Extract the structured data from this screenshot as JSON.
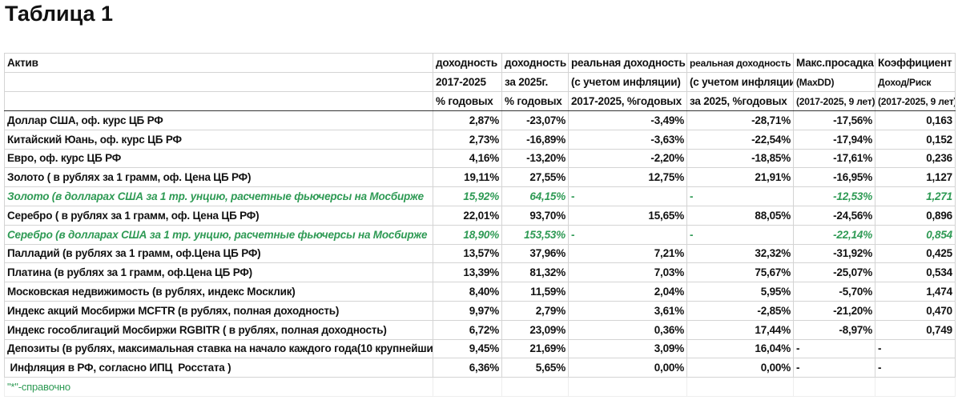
{
  "title": "Таблица 1",
  "table": {
    "header": [
      [
        "Актив",
        "доходность",
        "доходность",
        "реальная доходность",
        "реальная доходность",
        "Макс.просадка",
        "Коэффициент"
      ],
      [
        "",
        "2017-2025",
        "за 2025г.",
        "(с учетом инфляции)",
        "(с учетом инфляции",
        "(MaxDD)",
        "Доход/Риск"
      ],
      [
        "",
        "% годовых",
        "% годовых",
        "2017-2025, %годовых",
        "за 2025, %годовых",
        "(2017-2025, 9 лет)",
        "(2017-2025, 9 лет)"
      ]
    ],
    "rows": [
      [
        "Доллар США, оф. курс ЦБ РФ",
        "2,87%",
        "-23,07%",
        "-3,49%",
        "-28,71%",
        "-17,56%",
        "0,163"
      ],
      [
        "Китайский Юань, оф. курс ЦБ РФ",
        "2,73%",
        "-16,89%",
        "-3,63%",
        "-22,54%",
        "-17,94%",
        "0,152"
      ],
      [
        "Евро, оф. курс ЦБ РФ",
        "4,16%",
        "-13,20%",
        "-2,20%",
        "-18,85%",
        "-17,61%",
        "0,236"
      ],
      [
        "Золото ( в рублях за 1 грамм, оф. Цена ЦБ РФ)",
        "19,11%",
        "27,55%",
        "12,75%",
        "21,91%",
        "-16,95%",
        "1,127"
      ],
      [
        "Золото (в долларах США за 1 тр. унцию, расчетные фьючерсы на Мосбирже",
        "15,92%",
        "64,15%",
        "-",
        "-",
        "-12,53%",
        "1,271"
      ],
      [
        "Серебро ( в рублях за 1 грамм, оф. Цена ЦБ РФ)",
        "22,01%",
        "93,70%",
        "15,65%",
        "88,05%",
        "-24,56%",
        "0,896"
      ],
      [
        "Серебро (в долларах США за 1 тр. унцию, расчетные фьючерсы на Мосбирже",
        "18,90%",
        "153,53%",
        "-",
        "-",
        "-22,14%",
        "0,854"
      ],
      [
        "Палладий (в рублях за 1 грамм, оф.Цена ЦБ РФ)",
        "13,57%",
        "37,96%",
        "7,21%",
        "32,32%",
        "-31,92%",
        "0,425"
      ],
      [
        "Платина (в рублях за 1 грамм, оф.Цена ЦБ РФ)",
        "13,39%",
        "81,32%",
        "7,03%",
        "75,67%",
        "-25,07%",
        "0,534"
      ],
      [
        "Московская недвижимость (в рублях, индекс Москлик)",
        "8,40%",
        "11,59%",
        "2,04%",
        "5,95%",
        "-5,70%",
        "1,474"
      ],
      [
        "Индекс акций Мосбиржи MCFTR (в рублях, полная доходность)",
        "9,97%",
        "2,79%",
        "3,61%",
        "-2,85%",
        "-21,20%",
        "0,470"
      ],
      [
        "Индекс гособлигаций Мосбиржи RGBITR ( в рублях, полная доходность)",
        "6,72%",
        "23,09%",
        "0,36%",
        "17,44%",
        "-8,97%",
        "0,749"
      ],
      [
        "Депозиты (в рублях, максимальная ставка на начало каждого года(10 крупнейших",
        "9,45%",
        "21,69%",
        "3,09%",
        "16,04%",
        "-",
        "-"
      ],
      [
        " Инфляция в РФ, согласно ИПЦ  Росстата )",
        "6,36%",
        "5,65%",
        "0,00%",
        "0,00%",
        "-",
        "-"
      ]
    ],
    "footnote": "\"*\"-справочно"
  }
}
